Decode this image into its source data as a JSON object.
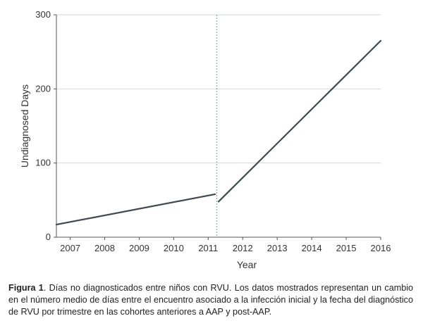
{
  "chart_data": {
    "type": "line",
    "title": "",
    "xlabel": "Year",
    "ylabel": "Undiagnosed Days",
    "xlim": [
      2006.6,
      2016
    ],
    "ylim": [
      0,
      300
    ],
    "x_ticks": [
      2007,
      2008,
      2009,
      2010,
      2011,
      2012,
      2013,
      2014,
      2015,
      2016
    ],
    "y_ticks": [
      0,
      100,
      200,
      300
    ],
    "grid": "horizontal",
    "vertical_marker": {
      "x": 2011.25,
      "style": "dotted",
      "color": "#5ab4d6"
    },
    "series": [
      {
        "name": "pre-AAP",
        "color": "#3d4a4f",
        "x": [
          2006.6,
          2011.2
        ],
        "y": [
          17,
          58
        ]
      },
      {
        "name": "post-AAP",
        "color": "#3d4a4f",
        "x": [
          2011.3,
          2016
        ],
        "y": [
          48,
          265
        ]
      }
    ]
  },
  "caption": {
    "label": "Figura 1",
    "text": ". Días no diagnosticados entre niños con RVU. Los datos mostrados representan un cambio en el número medio de días entre el encuentro asociado a la infección inicial y la fecha del diagnóstico de RVU por trimestre en las cohortes anteriores a AAP y post-AAP."
  }
}
